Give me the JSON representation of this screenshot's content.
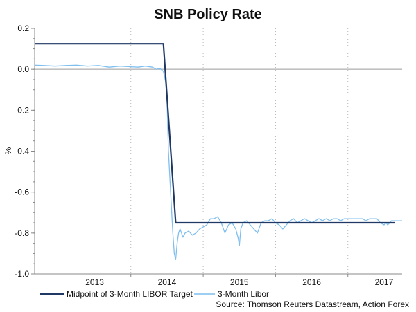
{
  "chart_data": {
    "type": "line",
    "title": "SNB Policy Rate",
    "xlabel": "",
    "ylabel": "%",
    "ylim": [
      -1.0,
      0.2
    ],
    "yticks": [
      "0.2",
      "0.0",
      "-0.2",
      "-0.4",
      "-0.6",
      "-0.8",
      "-1.0"
    ],
    "ytick_values": [
      0.2,
      0.0,
      -0.2,
      -0.4,
      -0.6,
      -0.8,
      -1.0
    ],
    "xlim": [
      2012.67,
      2017.75
    ],
    "xticks": [
      "2013",
      "2014",
      "2015",
      "2016",
      "2017"
    ],
    "xtick_centers": [
      2013.5,
      2014.5,
      2015.5,
      2016.5,
      2017.5
    ],
    "year_boundaries": [
      2014,
      2015,
      2016,
      2017
    ],
    "zero_line": 0.0,
    "series": [
      {
        "name": "Midpoint of 3-Month LIBOR Target",
        "color": "#1f3864",
        "x": [
          2012.67,
          2014.45,
          2014.62,
          2017.65
        ],
        "y": [
          0.125,
          0.125,
          -0.75,
          -0.75
        ]
      },
      {
        "name": "3-Month Libor",
        "color": "#7fbfef",
        "x": [
          2012.67,
          2012.8,
          2012.95,
          2013.1,
          2013.25,
          2013.4,
          2013.55,
          2013.7,
          2013.85,
          2014.0,
          2014.1,
          2014.2,
          2014.3,
          2014.35,
          2014.4,
          2014.45,
          2014.48,
          2014.5,
          2014.52,
          2014.55,
          2014.58,
          2014.6,
          2014.62,
          2014.64,
          2014.66,
          2014.68,
          2014.7,
          2014.72,
          2014.75,
          2014.8,
          2014.85,
          2014.9,
          2014.95,
          2015.0,
          2015.05,
          2015.1,
          2015.15,
          2015.2,
          2015.25,
          2015.3,
          2015.35,
          2015.4,
          2015.45,
          2015.48,
          2015.5,
          2015.52,
          2015.55,
          2015.6,
          2015.65,
          2015.7,
          2015.75,
          2015.8,
          2015.85,
          2015.9,
          2015.95,
          2016.0,
          2016.05,
          2016.1,
          2016.15,
          2016.2,
          2016.25,
          2016.3,
          2016.35,
          2016.4,
          2016.45,
          2016.5,
          2016.55,
          2016.6,
          2016.65,
          2016.7,
          2016.75,
          2016.8,
          2016.85,
          2016.9,
          2016.95,
          2017.0,
          2017.05,
          2017.1,
          2017.15,
          2017.2,
          2017.25,
          2017.3,
          2017.35,
          2017.4,
          2017.45,
          2017.5,
          2017.53,
          2017.55,
          2017.58,
          2017.6,
          2017.65,
          2017.7,
          2017.75
        ],
        "y": [
          0.02,
          0.018,
          0.015,
          0.018,
          0.02,
          0.015,
          0.018,
          0.01,
          0.015,
          0.012,
          0.01,
          0.015,
          0.01,
          0.0,
          0.005,
          -0.01,
          -0.06,
          -0.15,
          -0.4,
          -0.6,
          -0.8,
          -0.9,
          -0.93,
          -0.85,
          -0.8,
          -0.78,
          -0.8,
          -0.82,
          -0.8,
          -0.79,
          -0.81,
          -0.8,
          -0.78,
          -0.77,
          -0.76,
          -0.73,
          -0.73,
          -0.72,
          -0.75,
          -0.8,
          -0.76,
          -0.75,
          -0.78,
          -0.82,
          -0.86,
          -0.78,
          -0.75,
          -0.74,
          -0.76,
          -0.78,
          -0.8,
          -0.75,
          -0.74,
          -0.74,
          -0.73,
          -0.75,
          -0.76,
          -0.78,
          -0.76,
          -0.74,
          -0.73,
          -0.75,
          -0.74,
          -0.73,
          -0.74,
          -0.75,
          -0.74,
          -0.73,
          -0.74,
          -0.73,
          -0.74,
          -0.73,
          -0.73,
          -0.74,
          -0.73,
          -0.73,
          -0.73,
          -0.73,
          -0.73,
          -0.73,
          -0.74,
          -0.73,
          -0.73,
          -0.73,
          -0.75,
          -0.76,
          -0.75,
          -0.76,
          -0.75,
          -0.74,
          -0.74,
          -0.74,
          -0.74
        ]
      }
    ],
    "legend": {
      "placement": "bottom-left",
      "items": [
        {
          "label": "Midpoint of 3-Month LIBOR Target",
          "color": "#1f3864"
        },
        {
          "label": "3-Month Libor",
          "color": "#7fbfef"
        }
      ]
    },
    "source": "Source: Thomson Reuters Datastream, Action Forex"
  }
}
